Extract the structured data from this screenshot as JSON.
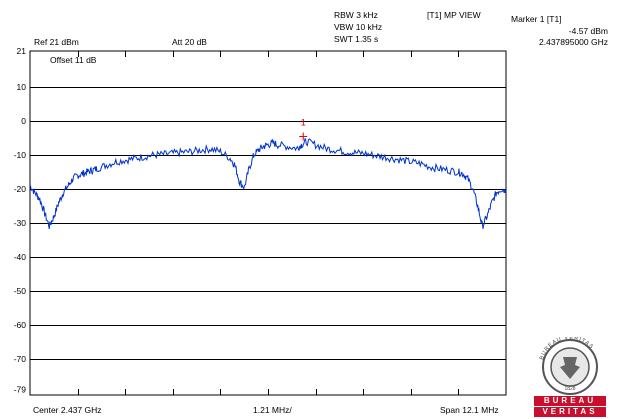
{
  "header": {
    "rbw": "RBW 3 kHz",
    "vbw": "VBW 10 kHz",
    "swt": "SWT 1.35 s",
    "view": "[T1] MP VIEW",
    "marker_title": "Marker 1 [T1]",
    "marker_level": "-4.57 dBm",
    "marker_freq": "2.437895000 GHz",
    "ref": "Ref 21 dBm",
    "att": "Att  20 dB",
    "offset": "Offset 11 dB"
  },
  "footer": {
    "center": "Center 2.437 GHz",
    "div": "1.21 MHz/",
    "span": "Span 12.1 MHz"
  },
  "logo": {
    "seal_top": "BUREAU VERITAS",
    "seal_year": "1828",
    "word1": "BUREAU",
    "word2": "VERITAS"
  },
  "colors": {
    "trace": "#0033cc",
    "marker": "#e00000",
    "grid": "#000000"
  },
  "chart_data": {
    "type": "line",
    "title": "",
    "xlabel": "",
    "ylabel": "",
    "x_unit": "GHz",
    "xlim": [
      2.43095,
      2.44305
    ],
    "ylim": [
      -79,
      21
    ],
    "y_ticks": [
      21,
      10,
      0,
      -10,
      -20,
      -30,
      -40,
      -50,
      -60,
      -70,
      -79
    ],
    "grid": true,
    "marker": {
      "label": "1",
      "x": 2.437895,
      "y": -4.57
    },
    "series": [
      {
        "x": [
          2.43095,
          2.43107,
          2.4312,
          2.43132,
          2.43144,
          2.43156,
          2.43168,
          2.4318,
          2.43192,
          2.43204,
          2.43216,
          2.43229,
          2.43241,
          2.43253,
          2.43265,
          2.43289,
          2.43313,
          2.43338,
          2.43362,
          2.43386,
          2.4341,
          2.43434,
          2.43459,
          2.43483,
          2.43507,
          2.43531,
          2.43555,
          2.43579,
          2.43604,
          2.43616,
          2.43628,
          2.4364,
          2.43652,
          2.43664,
          2.43676,
          2.43688,
          2.437,
          2.43713,
          2.43725,
          2.43749,
          2.43773,
          2.43785,
          2.43797,
          2.43821,
          2.43846,
          2.4387,
          2.43894,
          2.43918,
          2.43942,
          2.43967,
          2.43991,
          2.44015,
          2.44039,
          2.44063,
          2.44087,
          2.44112,
          2.44136,
          2.4416,
          2.44184,
          2.44196,
          2.44208,
          2.44221,
          2.44233,
          2.44245,
          2.44257,
          2.44269,
          2.44281,
          2.44293,
          2.44305
        ],
        "y": [
          -19,
          -21,
          -23,
          -27,
          -31,
          -28,
          -24,
          -21,
          -19,
          -17,
          -16,
          -15.5,
          -15,
          -14.5,
          -14,
          -13,
          -12,
          -11.5,
          -11,
          -10.5,
          -10,
          -9.8,
          -9.5,
          -9.2,
          -9,
          -8.5,
          -8.2,
          -9,
          -11,
          -13,
          -18,
          -19.5,
          -14,
          -10,
          -8.5,
          -7.5,
          -7,
          -6.5,
          -7,
          -7.5,
          -8,
          -7,
          -6,
          -7,
          -8,
          -8.5,
          -9,
          -9.3,
          -9.5,
          -10,
          -10.5,
          -11,
          -11.5,
          -12,
          -12.5,
          -13.5,
          -14,
          -14.5,
          -15,
          -15.5,
          -17,
          -20,
          -25,
          -31,
          -28,
          -24,
          -21,
          -20,
          -20.5
        ]
      }
    ]
  }
}
